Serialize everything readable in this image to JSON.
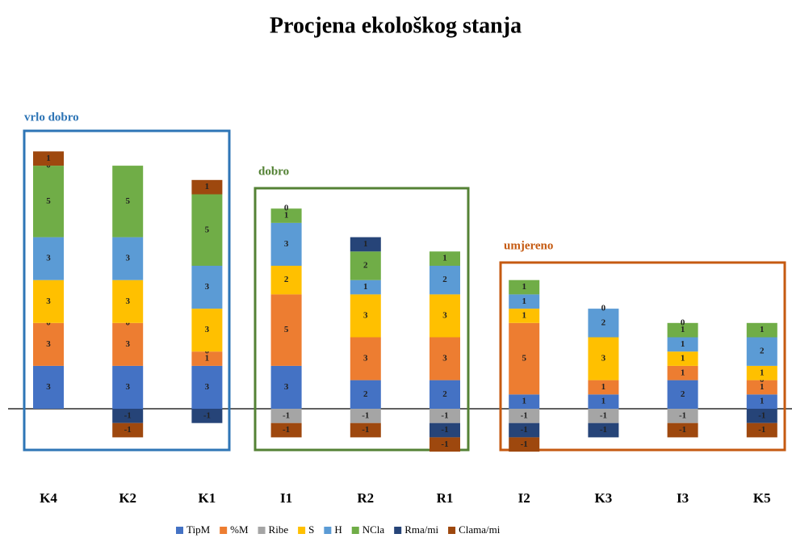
{
  "chart_data": {
    "type": "bar",
    "stacked": true,
    "title": "Procjena ekološkog stanja",
    "categories": [
      "K4",
      "K2",
      "K1",
      "I1",
      "R2",
      "R1",
      "I2",
      "K3",
      "I3",
      "K5"
    ],
    "series": [
      {
        "name": "TipM",
        "color": "#4472c4",
        "values": [
          3,
          3,
          3,
          3,
          2,
          2,
          1,
          1,
          2,
          1
        ]
      },
      {
        "name": "%M",
        "color": "#ed7d31",
        "values": [
          3,
          3,
          1,
          5,
          3,
          3,
          5,
          1,
          1,
          1
        ]
      },
      {
        "name": "Ribe",
        "color": "#a5a5a5",
        "values": [
          0,
          0,
          0,
          -1,
          -1,
          -1,
          -1,
          -1,
          -1,
          0
        ]
      },
      {
        "name": "S",
        "color": "#ffc000",
        "values": [
          3,
          3,
          3,
          2,
          3,
          3,
          1,
          3,
          1,
          1
        ]
      },
      {
        "name": "H",
        "color": "#5b9bd5",
        "values": [
          3,
          3,
          3,
          3,
          1,
          2,
          1,
          2,
          1,
          2
        ]
      },
      {
        "name": "NCla",
        "color": "#70ad47",
        "values": [
          5,
          5,
          5,
          1,
          2,
          1,
          1,
          0,
          1,
          1
        ]
      },
      {
        "name": "Rma/mi",
        "color": "#264478",
        "values": [
          0,
          -1,
          -1,
          0,
          1,
          -1,
          -1,
          -1,
          0,
          -1
        ]
      },
      {
        "name": "Clama/mi",
        "color": "#9e480e",
        "values": [
          1,
          -1,
          1,
          -1,
          -1,
          -1,
          -1,
          null,
          -1,
          -1
        ]
      }
    ],
    "annotations": [
      "vrlo dobro",
      "dobro",
      "umjereno"
    ]
  }
}
